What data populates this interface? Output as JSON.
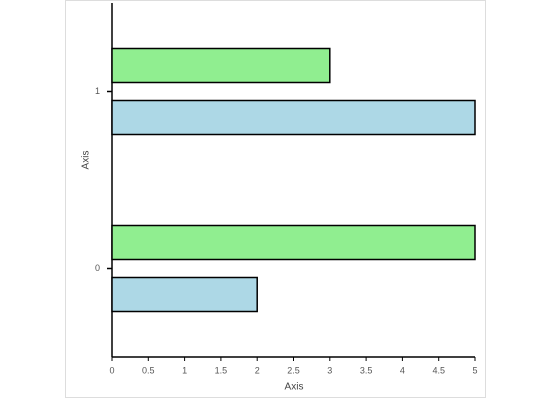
{
  "chart_data": {
    "type": "bar",
    "orientation": "horizontal",
    "categories": [
      "0",
      "1"
    ],
    "series": [
      {
        "color": "#add8e6",
        "values": [
          2,
          5
        ]
      },
      {
        "color": "#90ee90",
        "values": [
          5,
          3
        ]
      }
    ],
    "xlabel": "Axis",
    "ylabel": "Axis",
    "xlim": [
      0,
      5
    ],
    "xticks": [
      0,
      0.5,
      1,
      1.5,
      2,
      2.5,
      3,
      3.5,
      4,
      4.5,
      5
    ]
  }
}
